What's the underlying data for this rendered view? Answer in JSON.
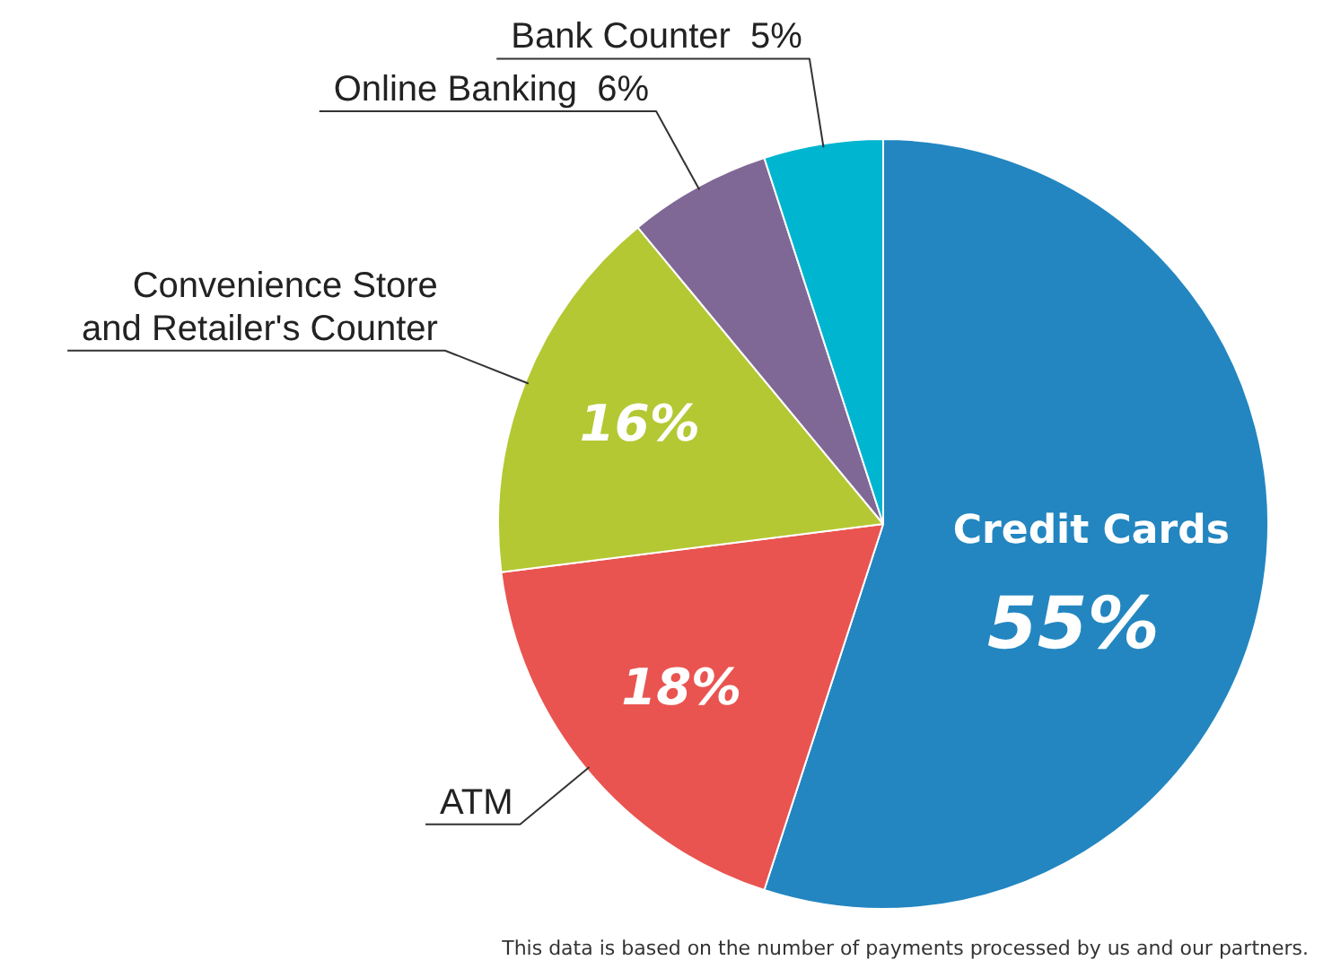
{
  "chart_data": {
    "type": "pie",
    "categories": [
      "Credit Cards",
      "ATM",
      "Convenience Store and Retailer's Counter",
      "Online Banking",
      "Bank Counter"
    ],
    "values": [
      55,
      18,
      16,
      6,
      5
    ],
    "colors": [
      "#2386c0",
      "#e95450",
      "#b4c833",
      "#806896",
      "#00b5cf"
    ],
    "value_labels": [
      "55%",
      "18%",
      "16%",
      "6%",
      "5%"
    ],
    "legend": false,
    "annotations": [
      "This data is based on the number of payments processed by us and our partners."
    ]
  }
}
